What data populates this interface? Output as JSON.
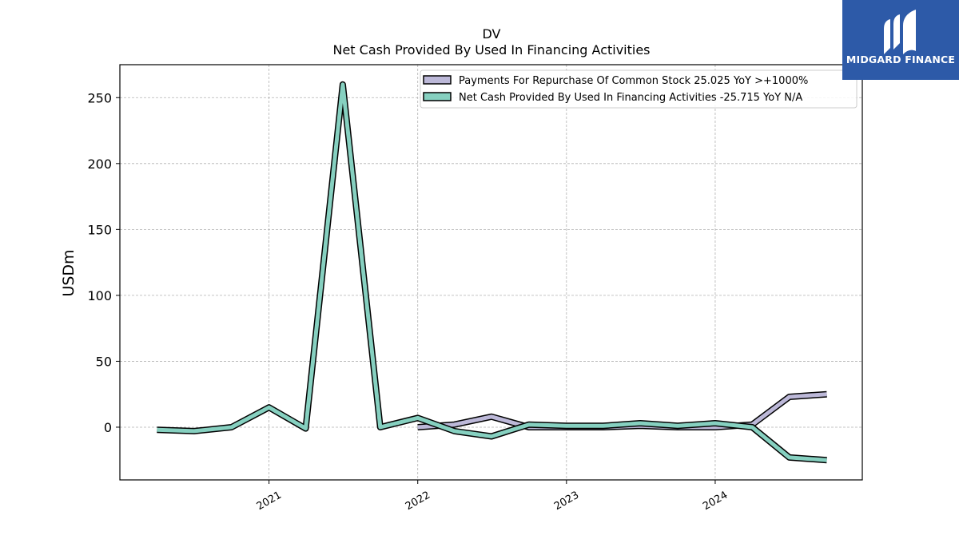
{
  "chart_data": {
    "type": "line",
    "title": "DV",
    "subtitle": "Net Cash Provided By Used In Financing Activities",
    "ylabel": "USDm",
    "xlabel": "",
    "ylim": [
      -40,
      275
    ],
    "xlim": [
      "2020-01-01",
      "2024-12-27"
    ],
    "yticks": [
      0,
      50,
      100,
      150,
      200,
      250
    ],
    "xticks": [
      {
        "date": "2021-01-01",
        "label": "2021"
      },
      {
        "date": "2022-01-01",
        "label": "2022"
      },
      {
        "date": "2023-01-01",
        "label": "2023"
      },
      {
        "date": "2024-01-01",
        "label": "2024"
      }
    ],
    "grid": true,
    "legend_position": "top-right",
    "series": [
      {
        "name": "Payments For Repurchase Of Common Stock  25.025 YoY >+1000%",
        "color": "#bcb8d8",
        "points": [
          {
            "x": "2022-01-01",
            "y": 0
          },
          {
            "x": "2022-04-01",
            "y": 2
          },
          {
            "x": "2022-07-01",
            "y": 8
          },
          {
            "x": "2022-10-01",
            "y": 0
          },
          {
            "x": "2023-01-01",
            "y": 0
          },
          {
            "x": "2023-04-01",
            "y": 0
          },
          {
            "x": "2023-07-01",
            "y": 1
          },
          {
            "x": "2023-10-01",
            "y": 0
          },
          {
            "x": "2024-01-01",
            "y": 0
          },
          {
            "x": "2024-04-01",
            "y": 2
          },
          {
            "x": "2024-07-01",
            "y": 23
          },
          {
            "x": "2024-10-01",
            "y": 25
          }
        ]
      },
      {
        "name": "Net Cash Provided By Used In Financing Activities  -25.715 YoY N/A",
        "color": "#86d0c0",
        "points": [
          {
            "x": "2020-04-01",
            "y": -2
          },
          {
            "x": "2020-07-01",
            "y": -3
          },
          {
            "x": "2020-10-01",
            "y": 0
          },
          {
            "x": "2021-01-01",
            "y": 15
          },
          {
            "x": "2021-04-01",
            "y": -1
          },
          {
            "x": "2021-07-01",
            "y": 260
          },
          {
            "x": "2021-10-01",
            "y": 0
          },
          {
            "x": "2022-01-01",
            "y": 7
          },
          {
            "x": "2022-04-01",
            "y": -3
          },
          {
            "x": "2022-07-01",
            "y": -7
          },
          {
            "x": "2022-10-01",
            "y": 2
          },
          {
            "x": "2023-01-01",
            "y": 1
          },
          {
            "x": "2023-04-01",
            "y": 1
          },
          {
            "x": "2023-07-01",
            "y": 3
          },
          {
            "x": "2023-10-01",
            "y": 1
          },
          {
            "x": "2024-01-01",
            "y": 3
          },
          {
            "x": "2024-04-01",
            "y": 0
          },
          {
            "x": "2024-07-01",
            "y": -23
          },
          {
            "x": "2024-10-01",
            "y": -25
          }
        ]
      }
    ]
  },
  "branding": {
    "name": "MIDGARD FINANCE",
    "background": "#2d5aa8",
    "icon": "midgard-logo-icon"
  }
}
